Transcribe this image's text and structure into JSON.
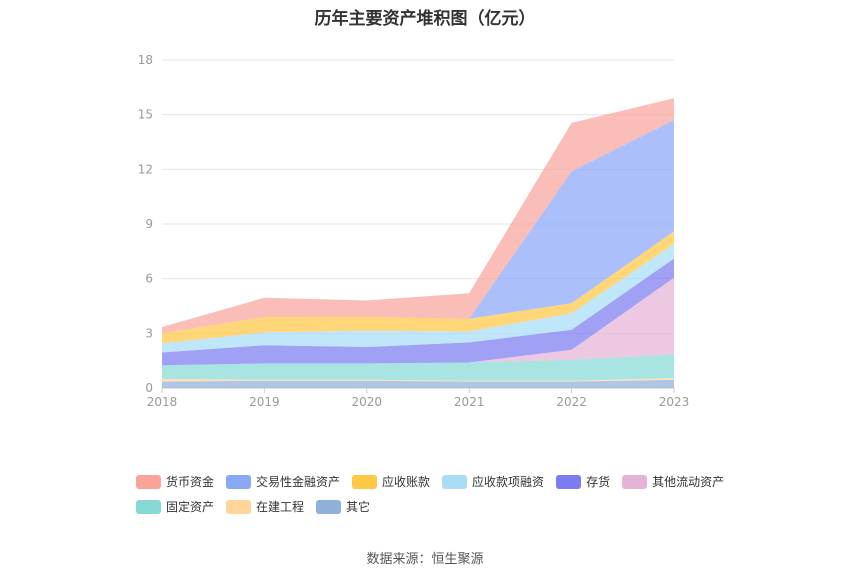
{
  "chart_data": {
    "type": "area",
    "stacked": true,
    "title": "历年主要资产堆积图（亿元）",
    "x": [
      "2018",
      "2019",
      "2020",
      "2021",
      "2022",
      "2023"
    ],
    "ylim": [
      0,
      18
    ],
    "yticks": [
      0,
      3,
      6,
      9,
      12,
      15,
      18
    ],
    "grid": true,
    "legend_position": "bottom",
    "series": [
      {
        "name": "其它",
        "color": "#8fb0d9",
        "values": [
          0.35,
          0.4,
          0.4,
          0.35,
          0.35,
          0.45
        ]
      },
      {
        "name": "在建工程",
        "color": "#ffd699",
        "values": [
          0.15,
          0.05,
          0.05,
          0.05,
          0.05,
          0.1
        ]
      },
      {
        "name": "固定资产",
        "color": "#87d9d5",
        "values": [
          0.75,
          0.9,
          0.9,
          1.0,
          1.15,
          1.3
        ]
      },
      {
        "name": "其他流动资产",
        "color": "#e6b3d8",
        "values": [
          0.0,
          0.0,
          0.0,
          0.0,
          0.55,
          4.2
        ]
      },
      {
        "name": "存货",
        "color": "#7c7cf0",
        "values": [
          0.7,
          1.0,
          0.9,
          1.1,
          1.1,
          1.05
        ]
      },
      {
        "name": "应收款项融资",
        "color": "#a8dcf7",
        "values": [
          0.5,
          0.7,
          0.9,
          0.6,
          0.9,
          0.8
        ]
      },
      {
        "name": "应收账款",
        "color": "#ffc845",
        "values": [
          0.55,
          0.85,
          0.75,
          0.7,
          0.55,
          0.7
        ]
      },
      {
        "name": "交易性金融资产",
        "color": "#8aa8f8",
        "values": [
          0.0,
          0.0,
          0.0,
          0.0,
          7.25,
          6.1
        ]
      },
      {
        "name": "货币资金",
        "color": "#f9a39b",
        "values": [
          0.35,
          1.05,
          0.9,
          1.4,
          2.65,
          1.2
        ]
      }
    ]
  },
  "legend_order": [
    "货币资金",
    "交易性金融资产",
    "应收账款",
    "应收款项融资",
    "存货",
    "其他流动资产",
    "固定资产",
    "在建工程",
    "其它"
  ],
  "source": "数据来源：恒生聚源"
}
